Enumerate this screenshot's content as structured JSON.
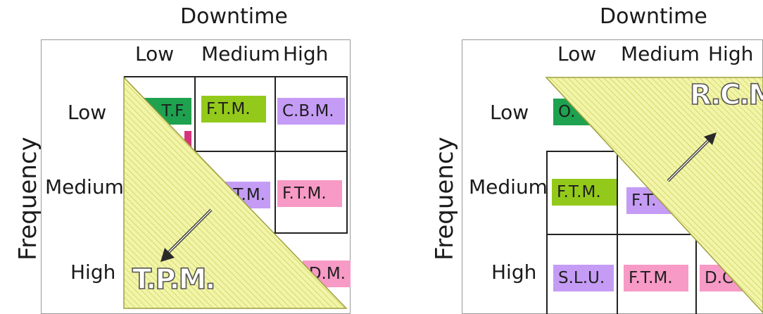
{
  "colors": {
    "green": "#1ea24f",
    "lime": "#93c91b",
    "violet": "#c59cf5",
    "pink": "#f79ac6",
    "hatch": "#f2f5a8",
    "hatch_line": "#c8cc55"
  },
  "left": {
    "title": "Downtime",
    "y_label": "Frequency",
    "cols": [
      "Low",
      "Medium",
      "High"
    ],
    "rows": [
      "Low",
      "Medium",
      "High"
    ],
    "cells": [
      {
        "label": "T.F.",
        "color": "green"
      },
      {
        "label": "F.T.M.",
        "color": "lime"
      },
      {
        "label": "C.B.M.",
        "color": "violet"
      },
      {
        "label": "T.M.",
        "color": "violet"
      },
      {
        "label": "F.T.M.",
        "color": "pink"
      },
      {
        "label": "D.M.",
        "color": "pink"
      }
    ],
    "overlay_label": "T.P.M."
  },
  "right": {
    "title": "Downtime",
    "y_label": "Frequency",
    "cols": [
      "Low",
      "Medium",
      "High"
    ],
    "rows": [
      "Low",
      "Medium",
      "High"
    ],
    "cells": [
      {
        "label": "O.",
        "color": "green"
      },
      {
        "label": "F.T.M.",
        "color": "lime"
      },
      {
        "label": "F.T.",
        "color": "violet"
      },
      {
        "label": "S.L.U.",
        "color": "violet"
      },
      {
        "label": "F.T.M.",
        "color": "pink"
      },
      {
        "label": "D.C",
        "color": "pink"
      }
    ],
    "overlay_label": "R.C.M."
  }
}
